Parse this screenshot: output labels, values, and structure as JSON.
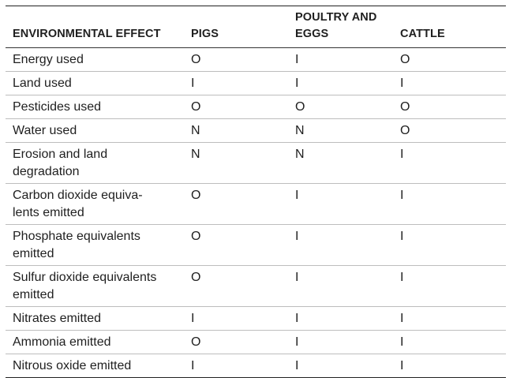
{
  "table": {
    "headers": [
      "ENVIRONMENTAL EFFECT",
      "PIGS",
      "POULTRY AND EGGS",
      "CATTLE"
    ],
    "header_lines": {
      "poultry_line1": "POULTRY AND",
      "poultry_line2": "EGGS"
    },
    "rows": [
      {
        "effect": "Energy used",
        "pigs": "O",
        "poultry": "I",
        "cattle": "O"
      },
      {
        "effect": "Land used",
        "pigs": "I",
        "poultry": "I",
        "cattle": "I"
      },
      {
        "effect": "Pesticides used",
        "pigs": "O",
        "poultry": "O",
        "cattle": "O"
      },
      {
        "effect": "Water used",
        "pigs": "N",
        "poultry": "N",
        "cattle": "O"
      },
      {
        "effect_lines": [
          "Erosion and land",
          "degradation"
        ],
        "pigs": "N",
        "poultry": "N",
        "cattle": "I"
      },
      {
        "effect_lines": [
          "Carbon dioxide equiva-",
          "lents emitted"
        ],
        "pigs": "O",
        "poultry": "I",
        "cattle": "I"
      },
      {
        "effect_lines": [
          "Phosphate equivalents",
          "emitted"
        ],
        "pigs": "O",
        "poultry": "I",
        "cattle": "I"
      },
      {
        "effect_lines": [
          "Sulfur dioxide equivalents",
          "emitted"
        ],
        "pigs": "O",
        "poultry": "I",
        "cattle": "I"
      },
      {
        "effect": "Nitrates emitted",
        "pigs": "I",
        "poultry": "I",
        "cattle": "I"
      },
      {
        "effect": "Ammonia emitted",
        "pigs": "O",
        "poultry": "I",
        "cattle": "I"
      },
      {
        "effect": "Nitrous oxide emitted",
        "pigs": "I",
        "poultry": "I",
        "cattle": "I"
      }
    ]
  }
}
